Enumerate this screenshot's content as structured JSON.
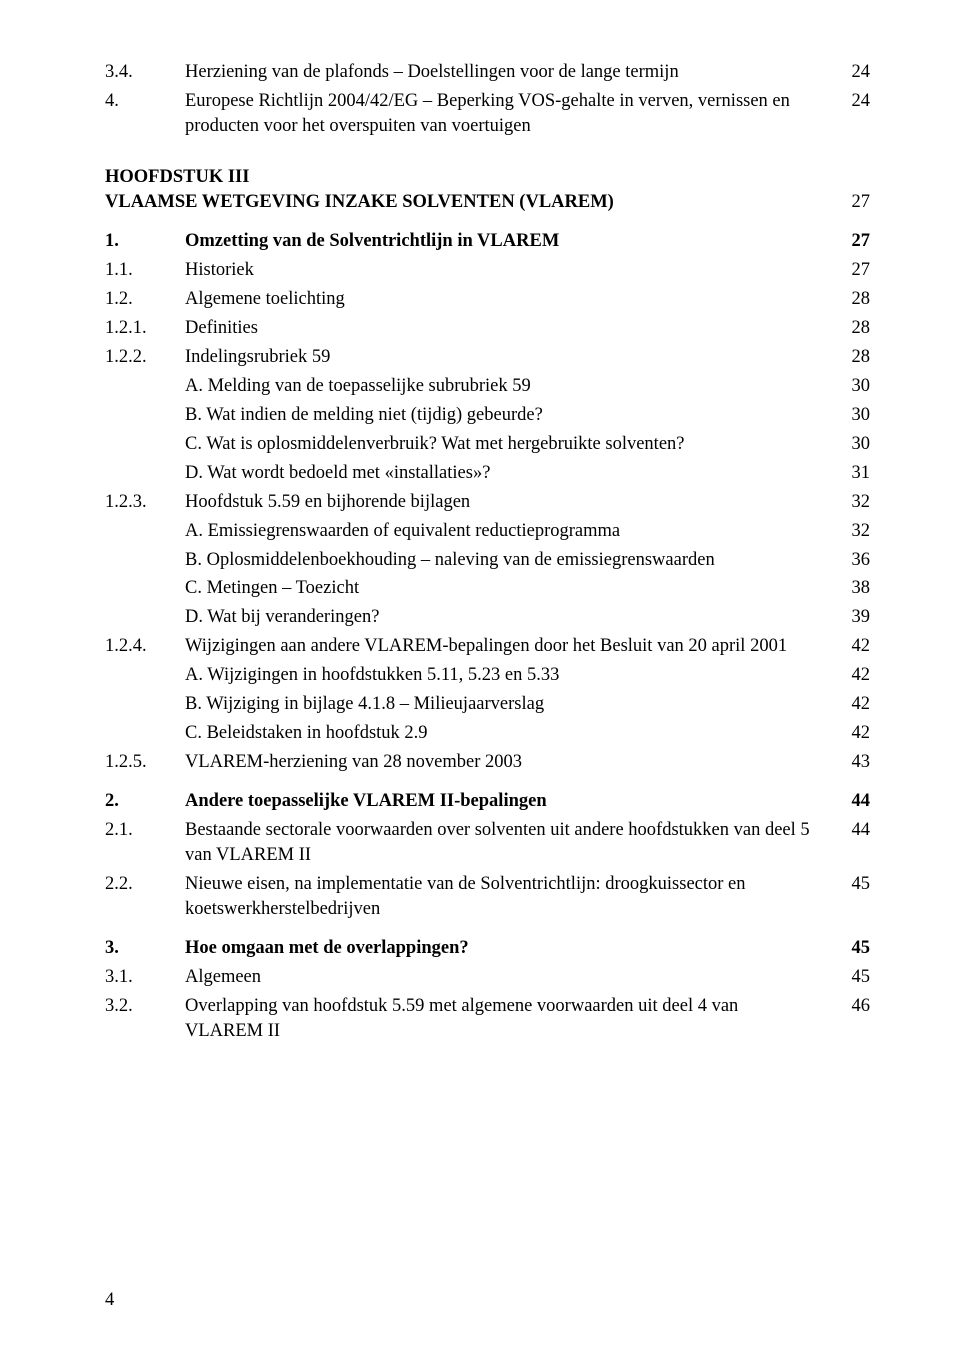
{
  "toc": {
    "r1": {
      "num": "3.4.",
      "text": "Herziening van de plafonds – Doelstellingen voor de lange termijn",
      "page": "24"
    },
    "r2": {
      "num": "4.",
      "text": "Europese Richtlijn 2004/42/EG – Beperking VOS-gehalte in verven, vernissen en producten voor het overspuiten van voertuigen",
      "page": "24"
    },
    "h3a": "HOOFDSTUK III",
    "h3b": "VLAAMSE WETGEVING INZAKE SOLVENTEN (VLAREM)",
    "h3p": "27",
    "r3": {
      "num": "1.",
      "text": "Omzetting van de Solventrichtlijn in VLAREM",
      "page": "27"
    },
    "r4": {
      "num": "1.1.",
      "text": "Historiek",
      "page": "27"
    },
    "r5": {
      "num": "1.2.",
      "text": "Algemene toelichting",
      "page": "28"
    },
    "r6": {
      "num": "1.2.1.",
      "text": "Definities",
      "page": "28"
    },
    "r7": {
      "num": "1.2.2.",
      "text": "Indelingsrubriek 59",
      "page": "28"
    },
    "r7a": {
      "text": "A.  Melding van de toepasselijke subrubriek 59",
      "page": "30"
    },
    "r7b": {
      "text": "B.  Wat indien de melding niet (tijdig) gebeurde?",
      "page": "30"
    },
    "r7c": {
      "text": "C.  Wat is oplosmiddelenverbruik? Wat met hergebruikte solventen?",
      "page": "30"
    },
    "r7d": {
      "text": "D.  Wat wordt bedoeld met «installaties»?",
      "page": "31"
    },
    "r8": {
      "num": "1.2.3.",
      "text": "Hoofdstuk 5.59 en bijhorende bijlagen",
      "page": "32"
    },
    "r8a": {
      "text": "A.  Emissiegrenswaarden of equivalent reductieprogramma",
      "page": "32"
    },
    "r8b": {
      "text": "B.  Oplosmiddelenboekhouding – naleving van de emissiegrenswaarden",
      "page": "36"
    },
    "r8c": {
      "text": "C.  Metingen – Toezicht",
      "page": "38"
    },
    "r8d": {
      "text": "D.  Wat bij veranderingen?",
      "page": "39"
    },
    "r9": {
      "num": "1.2.4.",
      "text": "Wijzigingen aan andere VLAREM-bepalingen door het Besluit van 20 april 2001",
      "page": "42"
    },
    "r9a": {
      "text": "A.  Wijzigingen in hoofdstukken 5.11, 5.23 en 5.33",
      "page": "42"
    },
    "r9b": {
      "text": "B.  Wijziging in bijlage 4.1.8 – Milieujaarverslag",
      "page": "42"
    },
    "r9c": {
      "text": "C.  Beleidstaken in hoofdstuk 2.9",
      "page": "42"
    },
    "r10": {
      "num": "1.2.5.",
      "text": "VLAREM-herziening van 28 november 2003",
      "page": "43"
    },
    "r11": {
      "num": "2.",
      "text": "Andere toepasselijke VLAREM II-bepalingen",
      "page": "44"
    },
    "r12": {
      "num": "2.1.",
      "text": "Bestaande sectorale voorwaarden over solventen uit andere hoofdstukken van deel 5 van VLAREM II",
      "page": "44"
    },
    "r13": {
      "num": "2.2.",
      "text": "Nieuwe eisen, na implementatie van de Solventrichtlijn: droogkuissector en koetswerkherstelbedrijven",
      "page": "45"
    },
    "r14": {
      "num": "3.",
      "text": "Hoe omgaan met de overlappingen?",
      "page": "45"
    },
    "r15": {
      "num": "3.1.",
      "text": "Algemeen",
      "page": "45"
    },
    "r16": {
      "num": "3.2.",
      "text": "Overlapping van hoofdstuk 5.59 met algemene voorwaarden uit deel 4 van VLAREM II",
      "page": "46"
    }
  },
  "footer_page": "4"
}
